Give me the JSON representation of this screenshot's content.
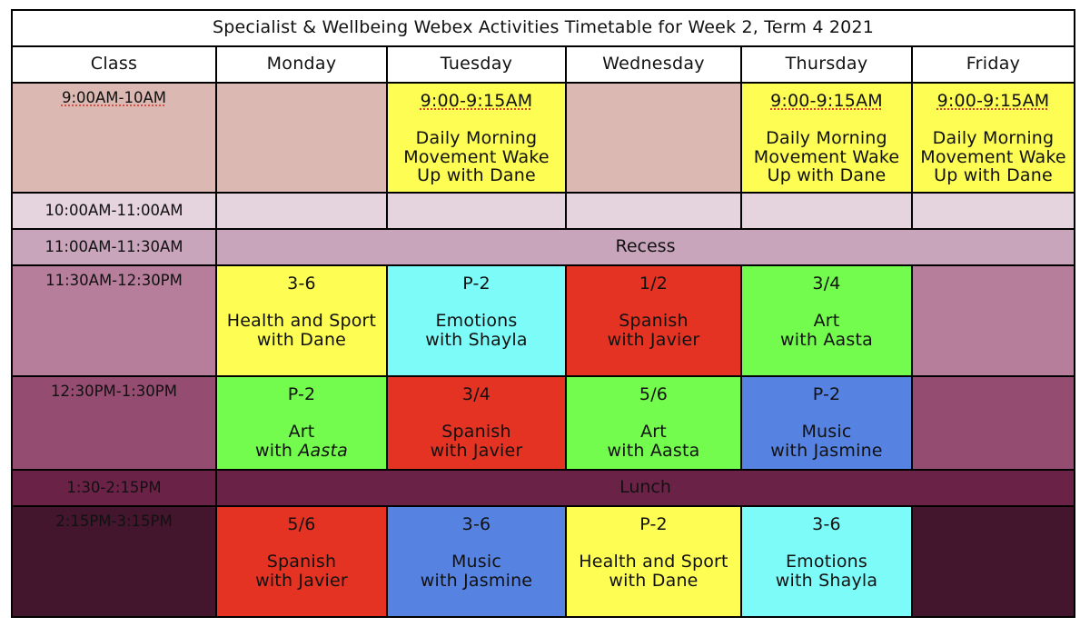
{
  "title": "Specialist & Wellbeing Webex Activities Timetable for Week 2, Term 4 2021",
  "headers": [
    "Class",
    "Monday",
    "Tuesday",
    "Wednesday",
    "Thursday",
    "Friday"
  ],
  "colors": {
    "row_9am": "#dbb8b1",
    "row_10am": "#e5d3dd",
    "row_1100": "#c9a5bc",
    "row_1130": "#b77e9c",
    "row_1230": "#944c70",
    "row_130": "#6a2347",
    "row_215": "#43162e",
    "yellow": "#fdfd53",
    "cyan": "#7cfbf9",
    "red": "#e53323",
    "green": "#73fb4d",
    "blue": "#5683e2"
  },
  "rows": {
    "r9": {
      "time": "9:00AM-10AM",
      "tue": {
        "time": "9:00-9:15AM",
        "l1": "Daily Morning",
        "l2": "Movement Wake",
        "l3": "Up with Dane"
      },
      "thu": {
        "time": "9:00-9:15AM",
        "l1": "Daily Morning",
        "l2": "Movement Wake",
        "l3": "Up with Dane"
      },
      "fri": {
        "time": "9:00-9:15AM",
        "l1": "Daily Morning",
        "l2": "Movement Wake",
        "l3": "Up with Dane"
      }
    },
    "r10": {
      "time": "10:00AM-11:00AM"
    },
    "r11": {
      "time": "11:00AM-11:30AM",
      "span_label": "Recess"
    },
    "r1130": {
      "time": "11:30AM-12:30PM",
      "mon": {
        "grade": "3-6",
        "l1": "Health and Sport",
        "l2": "with Dane"
      },
      "tue": {
        "grade": "P-2",
        "l1": "Emotions",
        "l2": "with Shayla"
      },
      "wed": {
        "grade": "1/2",
        "l1": "Spanish",
        "l2": "with Javier"
      },
      "thu": {
        "grade": "3/4",
        "l1": "Art",
        "l2": "with Aasta"
      }
    },
    "r1230": {
      "time": "12:30PM-1:30PM",
      "mon": {
        "grade": "P-2",
        "l1": "Art",
        "l2_prefix": "with ",
        "l2_name": "Aasta"
      },
      "tue": {
        "grade": "3/4",
        "l1": "Spanish",
        "l2": "with Javier"
      },
      "wed": {
        "grade": "5/6",
        "l1": "Art",
        "l2": "with Aasta"
      },
      "thu": {
        "grade": "P-2",
        "l1": "Music",
        "l2": "with Jasmine"
      }
    },
    "r130": {
      "time": "1:30-2:15PM",
      "span_label": "Lunch"
    },
    "r215": {
      "time": "2:15PM-3:15PM",
      "mon": {
        "grade": "5/6",
        "l1": "Spanish",
        "l2": "with Javier"
      },
      "tue": {
        "grade": "3-6",
        "l1": "Music",
        "l2": "with Jasmine"
      },
      "wed": {
        "grade": "P-2",
        "l1": "Health and Sport",
        "l2": "with Dane"
      },
      "thu": {
        "grade": "3-6",
        "l1": "Emotions",
        "l2": "with Shayla"
      }
    }
  }
}
